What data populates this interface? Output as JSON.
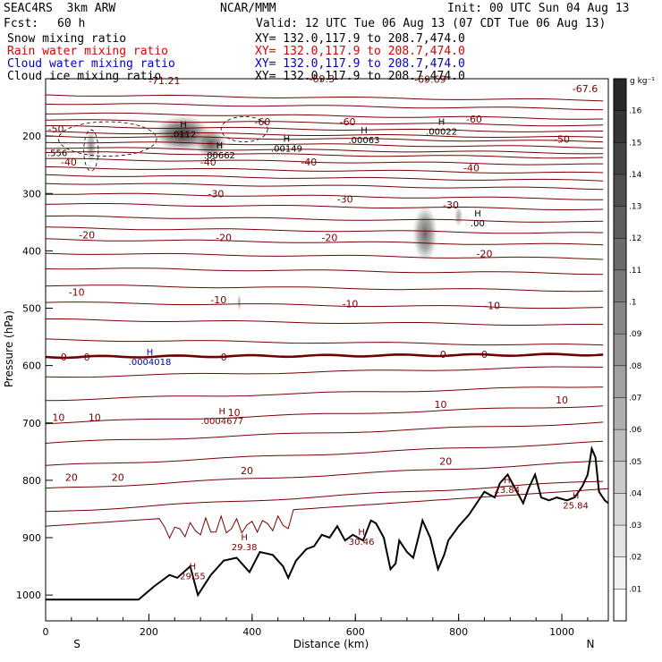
{
  "header": {
    "model": "SEAC4RS  3km ARW",
    "org": "NCAR/MMM",
    "init": "Init: 00 UTC Sun 04 Aug 13",
    "fcst_label": "Fcst:",
    "fcst_value": "60 h",
    "valid": "Valid: 12 UTC Tue 06 Aug 13 (07 CDT Tue 06 Aug 13)"
  },
  "fields": [
    {
      "label": "Snow mixing ratio",
      "xy": "XY= 132.0,117.9 to 208.7,474.0",
      "color": "#000000"
    },
    {
      "label": "Rain water mixing ratio",
      "xy": "XY= 132.0,117.9 to 208.7,474.0",
      "color": "#e00000"
    },
    {
      "label": "Cloud water mixing ratio",
      "xy": "XY= 132.0,117.9 to 208.7,474.0",
      "color": "#0000cc"
    },
    {
      "label": "Cloud ice mixing ratio",
      "xy": "XY= 132.0,117.9 to 208.7,474.0",
      "color": "#000000"
    }
  ],
  "colors": {
    "temperature": "#7a0000",
    "freezing": "#6e0000",
    "terrain": "#000000",
    "cloud_water": "#0000cc"
  },
  "chart_data": {
    "type": "contour",
    "xlabel": "Distance (km)",
    "ylabel": "Pressure (hPa)",
    "xlim": [
      0,
      1090
    ],
    "ylim": [
      1045,
      100
    ],
    "x_ticks": [
      0,
      200,
      400,
      600,
      800,
      1000
    ],
    "y_ticks": [
      200,
      300,
      400,
      500,
      600,
      700,
      800,
      900,
      1000
    ],
    "endpoint_labels": {
      "left": "S",
      "right": "N"
    },
    "colorbar": {
      "unit": "g kg⁻¹",
      "ticks": [
        ".01",
        ".02",
        ".03",
        ".04",
        ".05",
        ".06",
        ".07",
        ".08",
        ".09",
        ".1",
        ".11",
        ".12",
        ".13",
        ".14",
        ".15",
        ".16"
      ]
    },
    "temperature_labels": [
      {
        "x": 20,
        "p": 187,
        "t": "-50"
      },
      {
        "x": 230,
        "p": 103,
        "t": "-71.21"
      },
      {
        "x": 535,
        "p": 100,
        "t": "-69.3"
      },
      {
        "x": 745,
        "p": 101,
        "t": "-69.69"
      },
      {
        "x": 1045,
        "p": 117,
        "t": "-67.6"
      },
      {
        "x": 420,
        "p": 175,
        "t": "-60"
      },
      {
        "x": 585,
        "p": 175,
        "t": "-60"
      },
      {
        "x": 830,
        "p": 170,
        "t": "-60"
      },
      {
        "x": 1000,
        "p": 205,
        "t": "-50"
      },
      {
        "x": 45,
        "p": 245,
        "t": "-40"
      },
      {
        "x": 315,
        "p": 245,
        "t": "-40"
      },
      {
        "x": 510,
        "p": 245,
        "t": "-40"
      },
      {
        "x": 825,
        "p": 255,
        "t": "-40"
      },
      {
        "x": 330,
        "p": 300,
        "t": "-30"
      },
      {
        "x": 580,
        "p": 310,
        "t": "-30"
      },
      {
        "x": 785,
        "p": 320,
        "t": "-30"
      },
      {
        "x": 80,
        "p": 372,
        "t": "-20"
      },
      {
        "x": 345,
        "p": 377,
        "t": "-20"
      },
      {
        "x": 550,
        "p": 377,
        "t": "-20"
      },
      {
        "x": 850,
        "p": 405,
        "t": "-20"
      },
      {
        "x": 60,
        "p": 472,
        "t": "-10"
      },
      {
        "x": 335,
        "p": 485,
        "t": "-10"
      },
      {
        "x": 590,
        "p": 492,
        "t": "-10"
      },
      {
        "x": 865,
        "p": 495,
        "t": "-10"
      },
      {
        "x": 35,
        "p": 585,
        "t": "0"
      },
      {
        "x": 80,
        "p": 585,
        "t": "0"
      },
      {
        "x": 345,
        "p": 585,
        "t": "0"
      },
      {
        "x": 770,
        "p": 580,
        "t": "0"
      },
      {
        "x": 850,
        "p": 580,
        "t": "0"
      },
      {
        "x": 25,
        "p": 690,
        "t": "10"
      },
      {
        "x": 95,
        "p": 690,
        "t": "10"
      },
      {
        "x": 365,
        "p": 682,
        "t": "10"
      },
      {
        "x": 765,
        "p": 668,
        "t": "10"
      },
      {
        "x": 1000,
        "p": 660,
        "t": "10"
      },
      {
        "x": 50,
        "p": 795,
        "t": "20"
      },
      {
        "x": 140,
        "p": 795,
        "t": "20"
      },
      {
        "x": 390,
        "p": 783,
        "t": "20"
      },
      {
        "x": 775,
        "p": 767,
        "t": "20"
      }
    ],
    "maxima": [
      {
        "x": 260,
        "p": 185,
        "label": "H",
        "value": ".0112",
        "field": "snow"
      },
      {
        "x": 330,
        "p": 222,
        "label": "H",
        "value": ".00662",
        "field": "snow"
      },
      {
        "x": 460,
        "p": 210,
        "label": "H",
        "value": ".00149",
        "field": "snow"
      },
      {
        "x": 610,
        "p": 195,
        "label": "H",
        "value": ".00063",
        "field": "snow"
      },
      {
        "x": 760,
        "p": 180,
        "label": "H",
        "value": ".00022",
        "field": "snow"
      },
      {
        "x": 830,
        "p": 340,
        "label": "H",
        "value": ".00",
        "field": "ice"
      },
      {
        "x": 0,
        "p": 218,
        "label": "",
        "value": ".556",
        "field": "snow"
      },
      {
        "x": 195,
        "p": 582,
        "label": "H",
        "value": ".0004018",
        "field": "cloud"
      },
      {
        "x": 335,
        "p": 685,
        "label": "H",
        "value": ".0004677",
        "field": "temp"
      },
      {
        "x": 278,
        "p": 955,
        "label": "H",
        "value": "29.55",
        "field": "temp"
      },
      {
        "x": 378,
        "p": 905,
        "label": "H",
        "value": "29.38",
        "field": "temp"
      },
      {
        "x": 605,
        "p": 895,
        "label": "H",
        "value": "30.46",
        "field": "temp"
      },
      {
        "x": 887,
        "p": 805,
        "label": "H",
        "value": "23.84",
        "field": "temp"
      },
      {
        "x": 1020,
        "p": 832,
        "label": "H",
        "value": "25.84",
        "field": "temp"
      }
    ],
    "terrain": [
      [
        0,
        1008
      ],
      [
        180,
        1008
      ],
      [
        210,
        985
      ],
      [
        240,
        965
      ],
      [
        255,
        970
      ],
      [
        280,
        950
      ],
      [
        295,
        1000
      ],
      [
        320,
        965
      ],
      [
        345,
        940
      ],
      [
        370,
        935
      ],
      [
        395,
        960
      ],
      [
        415,
        925
      ],
      [
        440,
        930
      ],
      [
        460,
        950
      ],
      [
        470,
        970
      ],
      [
        485,
        940
      ],
      [
        505,
        920
      ],
      [
        520,
        915
      ],
      [
        535,
        895
      ],
      [
        550,
        900
      ],
      [
        565,
        880
      ],
      [
        580,
        905
      ],
      [
        595,
        895
      ],
      [
        615,
        905
      ],
      [
        630,
        870
      ],
      [
        640,
        875
      ],
      [
        655,
        900
      ],
      [
        668,
        955
      ],
      [
        678,
        945
      ],
      [
        685,
        905
      ],
      [
        700,
        925
      ],
      [
        712,
        935
      ],
      [
        722,
        900
      ],
      [
        730,
        870
      ],
      [
        745,
        900
      ],
      [
        760,
        955
      ],
      [
        772,
        930
      ],
      [
        780,
        905
      ],
      [
        800,
        880
      ],
      [
        820,
        860
      ],
      [
        835,
        840
      ],
      [
        850,
        820
      ],
      [
        870,
        830
      ],
      [
        880,
        805
      ],
      [
        895,
        790
      ],
      [
        910,
        815
      ],
      [
        925,
        840
      ],
      [
        935,
        815
      ],
      [
        948,
        790
      ],
      [
        960,
        830
      ],
      [
        975,
        835
      ],
      [
        990,
        830
      ],
      [
        1010,
        835
      ],
      [
        1025,
        830
      ],
      [
        1040,
        810
      ],
      [
        1050,
        790
      ],
      [
        1058,
        745
      ],
      [
        1065,
        760
      ],
      [
        1072,
        820
      ],
      [
        1083,
        835
      ],
      [
        1090,
        840
      ]
    ],
    "snow_cores": [
      {
        "x": 265,
        "p": 196,
        "rx": 55,
        "rp": 32,
        "level": 0.16
      },
      {
        "x": 320,
        "p": 213,
        "rx": 30,
        "rp": 26,
        "level": 0.12
      },
      {
        "x": 88,
        "p": 218,
        "rx": 10,
        "rp": 32,
        "level": 0.04
      },
      {
        "x": 735,
        "p": 370,
        "rx": 24,
        "rp": 50,
        "level": 0.1
      },
      {
        "x": 800,
        "p": 340,
        "rx": 8,
        "rp": 18,
        "level": 0.02
      },
      {
        "x": 375,
        "p": 490,
        "rx": 4,
        "rp": 15,
        "level": 0.02
      }
    ]
  }
}
